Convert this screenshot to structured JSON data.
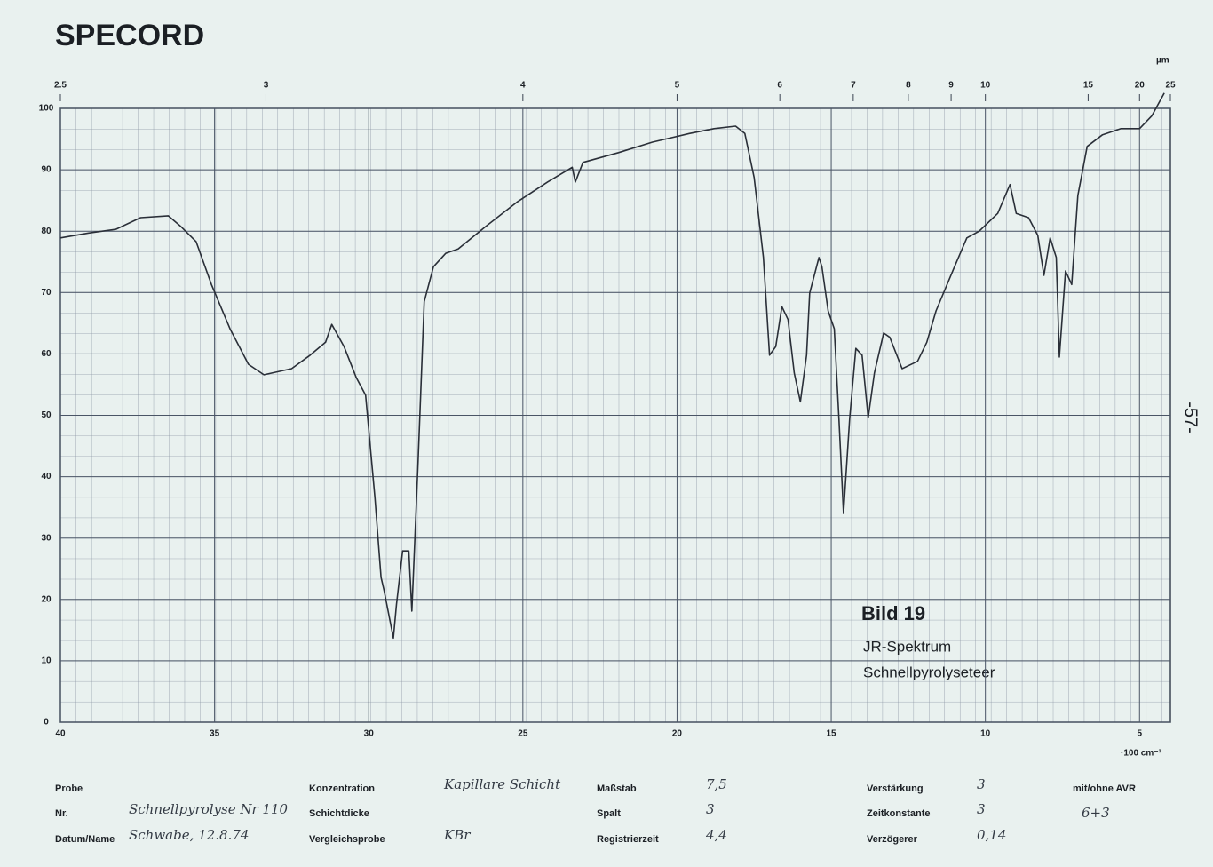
{
  "chart_data": {
    "type": "line",
    "title": "SPECORD",
    "x": [
      40,
      39.08,
      38.2,
      37.4,
      36.5,
      36.1,
      35.6,
      35.1,
      34.5,
      33.9,
      33.4,
      32.5,
      31.9,
      31.4,
      31.2,
      30.8,
      30.4,
      30.1,
      29.8,
      29.6,
      29.5,
      29.2,
      29.1,
      28.9,
      28.7,
      28.6,
      28.4,
      28.2,
      27.9,
      27.5,
      27.1,
      26.2,
      25.2,
      24.2,
      23.4,
      23.3,
      23.05,
      21.9,
      20.8,
      19.6,
      18.8,
      18.1,
      17.8,
      17.5,
      17.2,
      17.0,
      16.8,
      16.6,
      16.4,
      16.2,
      16.0,
      15.8,
      15.7,
      15.4,
      15.3,
      15.1,
      14.9,
      14.75,
      14.6,
      14.4,
      14.2,
      14.0,
      13.8,
      13.6,
      13.3,
      13.1,
      12.7,
      12.2,
      11.9,
      11.6,
      11.0,
      10.6,
      10.2,
      9.6,
      9.2,
      9.0,
      8.6,
      8.3,
      8.1,
      7.9,
      7.7,
      7.6,
      7.4,
      7.2,
      7.0,
      6.7,
      6.2,
      5.6,
      5.0,
      4.6,
      4.2
    ],
    "values": [
      78.9,
      79.7,
      80.3,
      82.2,
      82.5,
      80.8,
      78.3,
      71.3,
      64.1,
      58.3,
      56.6,
      57.6,
      59.8,
      61.9,
      64.8,
      61.2,
      56.1,
      53.3,
      36.6,
      23.6,
      21.4,
      13.7,
      19.2,
      27.9,
      27.9,
      18.1,
      42.4,
      68.5,
      74.2,
      76.4,
      77.1,
      80.8,
      84.7,
      88.0,
      90.4,
      88.0,
      91.2,
      92.8,
      94.5,
      95.9,
      96.7,
      97.1,
      95.9,
      88.7,
      75.7,
      59.8,
      61.2,
      67.7,
      65.6,
      56.9,
      52.2,
      59.8,
      69.9,
      75.7,
      74.2,
      67.0,
      64.1,
      49.6,
      34.0,
      49.6,
      60.9,
      59.8,
      49.6,
      56.9,
      63.4,
      62.7,
      57.6,
      58.8,
      61.9,
      67.0,
      74.2,
      78.9,
      80.0,
      82.9,
      87.6,
      82.9,
      82.2,
      79.3,
      72.8,
      78.9,
      75.7,
      59.5,
      73.5,
      71.3,
      85.8,
      93.8,
      95.7,
      96.7,
      96.7,
      98.8,
      102.5
    ],
    "color": "#2a2f38",
    "xlim": [
      40,
      4
    ],
    "xticks": [
      40,
      35,
      30,
      25,
      20,
      15,
      10,
      5
    ],
    "xlabel": "·100 cm⁻¹",
    "ylim": [
      0,
      100
    ],
    "yticks": [
      0,
      10,
      20,
      30,
      40,
      50,
      60,
      70,
      80,
      90,
      100
    ],
    "x2ticks": [
      2.5,
      3,
      4,
      5,
      6,
      7,
      8,
      9,
      10,
      15,
      20,
      25
    ],
    "x2label": "µm",
    "grid": true,
    "annotations": [
      "Bild 19",
      "JR-Spektrum",
      "Schnellpyrolyseteer"
    ]
  },
  "page_number": "-57-",
  "form": [
    [
      {
        "label": "Probe"
      },
      {
        "label": "Nr.",
        "value": "Schnellpyrolyse Nr 110"
      },
      {
        "label": "Datum/Name",
        "value": "Schwabe, 12.8.74"
      }
    ],
    [
      {
        "label": "Konzentration",
        "value": "Kapillare Schicht"
      },
      {
        "label": "Schichtdicke"
      },
      {
        "label": "Vergleichsprobe",
        "value": "KBr"
      }
    ],
    [
      {
        "label": "Maßstab",
        "value": "7,5"
      },
      {
        "label": "Spalt",
        "value": "3"
      },
      {
        "label": "Registrierzeit",
        "value": "4,4"
      }
    ],
    [
      {
        "label": "Verstärkung",
        "value": "3"
      },
      {
        "label": "Zeitkonstante",
        "value": "3"
      },
      {
        "label": "Verzögerer",
        "value": "0,14"
      }
    ],
    [
      {
        "label": "mit/ohne AVR",
        "value": "6+3"
      }
    ]
  ]
}
